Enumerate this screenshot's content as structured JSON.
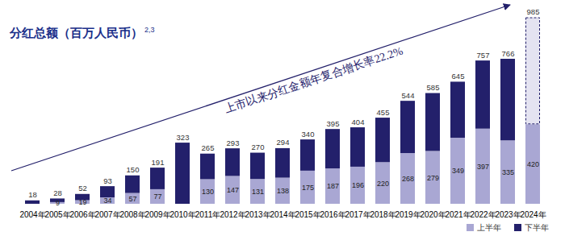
{
  "chart_data": {
    "type": "bar",
    "title": "分红总额（百万人民币）",
    "title_note": "2,3",
    "annotation": "上市以来分红金额年复合增长率22.2%",
    "categories": [
      "2004年",
      "2005年",
      "2006年",
      "2007年",
      "2008年",
      "2009年",
      "2010年",
      "2011年",
      "2012年",
      "2013年",
      "2014年",
      "2015年",
      "2016年",
      "2017年",
      "2018年",
      "2019年",
      "2020年",
      "2021年",
      "2022年",
      "2023年",
      "2024年"
    ],
    "series": [
      {
        "name": "上半年",
        "color": "#a9a7d3",
        "values": [
          0,
          9,
          19,
          34,
          57,
          77,
          0,
          130,
          147,
          131,
          138,
          175,
          187,
          196,
          220,
          268,
          279,
          349,
          397,
          335,
          420
        ],
        "value_labels": [
          null,
          "9",
          "19",
          "34",
          "57",
          "77",
          null,
          "130",
          "147",
          "131",
          "138",
          "175",
          "187",
          "196",
          "220",
          "268",
          "279",
          "349",
          "397",
          "335",
          "420"
        ]
      },
      {
        "name": "下半年",
        "color": "#23206b",
        "values": [
          18,
          19,
          33,
          59,
          93,
          114,
          323,
          135,
          146,
          139,
          156,
          165,
          208,
          208,
          235,
          276,
          306,
          296,
          360,
          431,
          565
        ]
      }
    ],
    "totals": [
      18,
      28,
      52,
      93,
      150,
      191,
      323,
      265,
      293,
      270,
      294,
      340,
      395,
      404,
      455,
      544,
      585,
      645,
      757,
      766,
      985
    ],
    "ylim": [
      0,
      1000
    ],
    "yticks": [],
    "stacked": true,
    "data_labels": true,
    "tick_labels": "x",
    "grid": false,
    "legend": "bottom-right"
  }
}
